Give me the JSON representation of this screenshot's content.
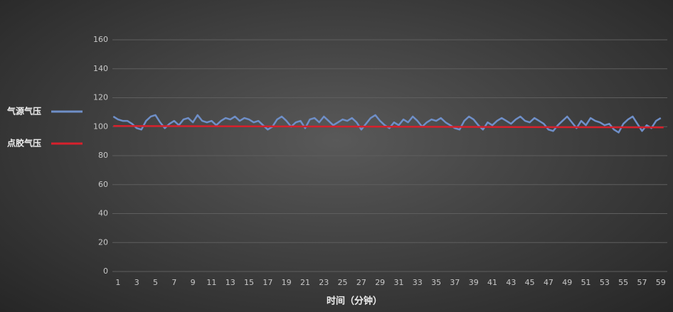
{
  "chart_data": {
    "type": "line",
    "xlabel": "时间（分钟）",
    "xlim": [
      0.4,
      59.7
    ],
    "xticks": [
      1,
      3,
      5,
      7,
      9,
      11,
      13,
      15,
      17,
      19,
      21,
      23,
      25,
      27,
      29,
      31,
      33,
      35,
      37,
      39,
      41,
      43,
      45,
      47,
      49,
      51,
      53,
      55,
      57,
      59
    ],
    "ylim": [
      0,
      160
    ],
    "yticks": [
      0,
      20,
      40,
      60,
      80,
      100,
      120,
      140,
      160
    ],
    "grid": true,
    "legend": "left",
    "series": [
      {
        "name": "气源气压",
        "color": "#6f8fc8",
        "x": [
          0.5,
          1,
          1.5,
          2,
          2.5,
          3,
          3.5,
          4,
          4.5,
          5,
          5.5,
          6,
          6.5,
          7,
          7.5,
          8,
          8.5,
          9,
          9.5,
          10,
          10.5,
          11,
          11.5,
          12,
          12.5,
          13,
          13.5,
          14,
          14.5,
          15,
          15.5,
          16,
          16.5,
          17,
          17.5,
          18,
          18.5,
          19,
          19.5,
          20,
          20.5,
          21,
          21.5,
          22,
          22.5,
          23,
          23.5,
          24,
          24.5,
          25,
          25.5,
          26,
          26.5,
          27,
          27.5,
          28,
          28.5,
          29,
          29.5,
          30,
          30.5,
          31,
          31.5,
          32,
          32.5,
          33,
          33.5,
          34,
          34.5,
          35,
          35.5,
          36,
          36.5,
          37,
          37.5,
          38,
          38.5,
          39,
          39.5,
          40,
          40.5,
          41,
          41.5,
          42,
          42.5,
          43,
          43.5,
          44,
          44.5,
          45,
          45.5,
          46,
          46.5,
          47,
          47.5,
          48,
          48.5,
          49,
          49.5,
          50,
          50.5,
          51,
          51.5,
          52,
          52.5,
          53,
          53.5,
          54,
          54.5,
          55,
          55.5,
          56,
          56.5,
          57,
          57.5,
          58,
          58.5,
          59
        ],
        "values": [
          107,
          105,
          104,
          104,
          102,
          99,
          98,
          104,
          107,
          108,
          103,
          99,
          102,
          104,
          101,
          105,
          106,
          103,
          108,
          104,
          103,
          104,
          101,
          104,
          106,
          105,
          107,
          104,
          106,
          105,
          103,
          104,
          101,
          98,
          100,
          105,
          107,
          104,
          100,
          103,
          104,
          99,
          105,
          106,
          103,
          107,
          104,
          101,
          103,
          105,
          104,
          106,
          103,
          98,
          102,
          106,
          108,
          104,
          101,
          99,
          103,
          101,
          105,
          103,
          107,
          104,
          100,
          103,
          105,
          104,
          106,
          103,
          101,
          99,
          98,
          104,
          107,
          105,
          101,
          98,
          103,
          101,
          104,
          106,
          104,
          102,
          105,
          107,
          104,
          103,
          106,
          104,
          102,
          98,
          97,
          101,
          104,
          107,
          103,
          99,
          104,
          101,
          106,
          104,
          103,
          101,
          102,
          98,
          96,
          102,
          105,
          107,
          102,
          97,
          101,
          99,
          104,
          106
        ]
      },
      {
        "name": "点胶气压",
        "color": "#d8202c",
        "x": [
          0.5,
          59.3
        ],
        "values": [
          100.5,
          99.5
        ]
      }
    ]
  }
}
